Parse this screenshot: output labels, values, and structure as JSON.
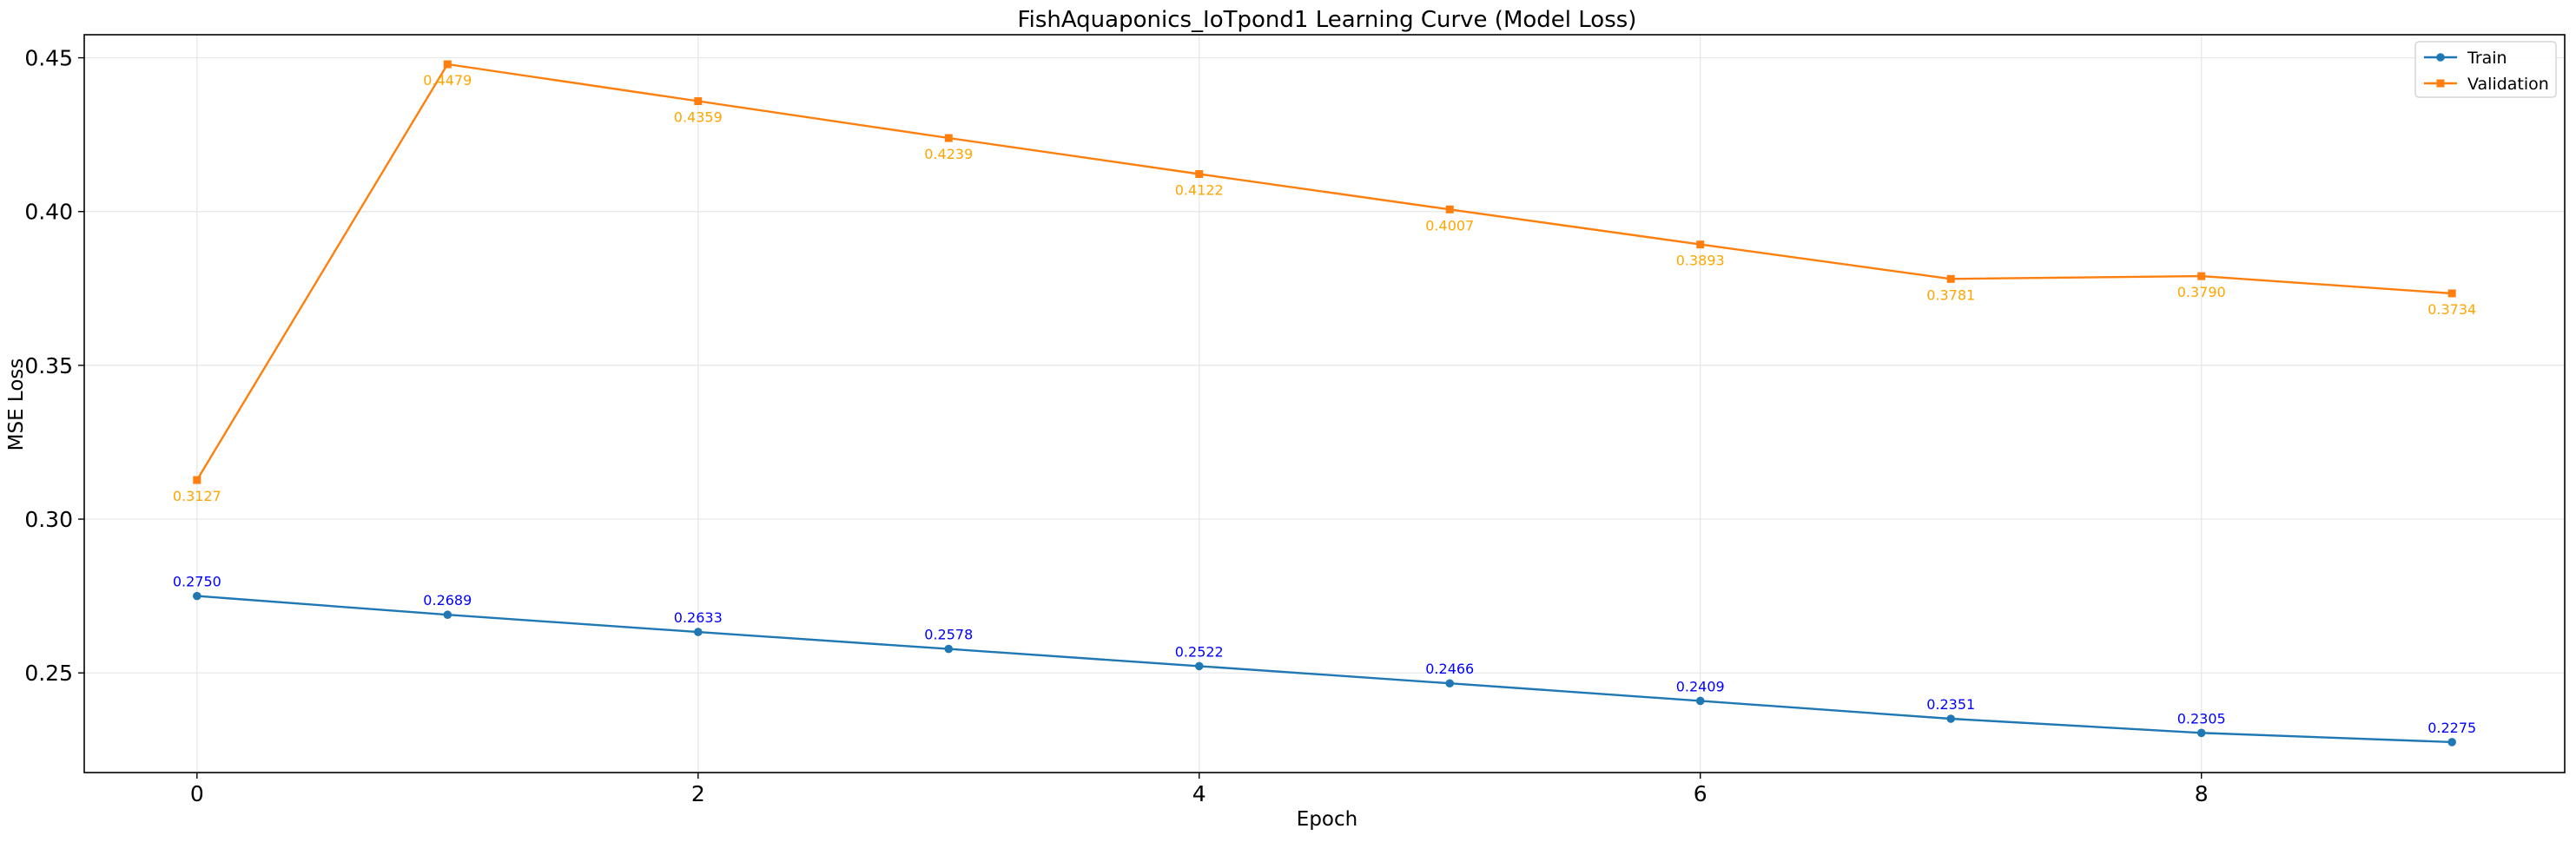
{
  "chart_data": {
    "type": "line",
    "title": "FishAquaponics_IoTpond1 Learning Curve (Model Loss)",
    "xlabel": "Epoch",
    "ylabel": "MSE Loss",
    "x": [
      0,
      1,
      2,
      3,
      4,
      5,
      6,
      7,
      8,
      9
    ],
    "xlim": [
      -0.45,
      9.45
    ],
    "ylim": [
      0.2176,
      0.4575
    ],
    "xticks": [
      0,
      2,
      4,
      6,
      8
    ],
    "yticks": [
      0.25,
      0.3,
      0.35,
      0.4,
      0.45
    ],
    "ytick_labels": [
      "0.25",
      "0.30",
      "0.35",
      "0.40",
      "0.45"
    ],
    "grid": true,
    "legend_position": "top-right",
    "series": [
      {
        "name": "Train",
        "color": "#1f77b4",
        "label_color": "#0000ff",
        "marker": "circle",
        "label_position": "above",
        "values": [
          0.275,
          0.2689,
          0.2633,
          0.2578,
          0.2522,
          0.2466,
          0.2409,
          0.2351,
          0.2305,
          0.2275
        ],
        "labels": [
          "0.2750",
          "0.2689",
          "0.2633",
          "0.2578",
          "0.2522",
          "0.2466",
          "0.2409",
          "0.2351",
          "0.2305",
          "0.2275"
        ]
      },
      {
        "name": "Validation",
        "color": "#ff7f0e",
        "label_color": "#ffa500",
        "marker": "square",
        "label_position": "below",
        "values": [
          0.3127,
          0.4479,
          0.4359,
          0.4239,
          0.4122,
          0.4007,
          0.3893,
          0.3781,
          0.379,
          0.3734
        ],
        "labels": [
          "0.3127",
          "0.4479",
          "0.4359",
          "0.4239",
          "0.4122",
          "0.4007",
          "0.3893",
          "0.3781",
          "0.3790",
          "0.3734"
        ]
      }
    ]
  }
}
